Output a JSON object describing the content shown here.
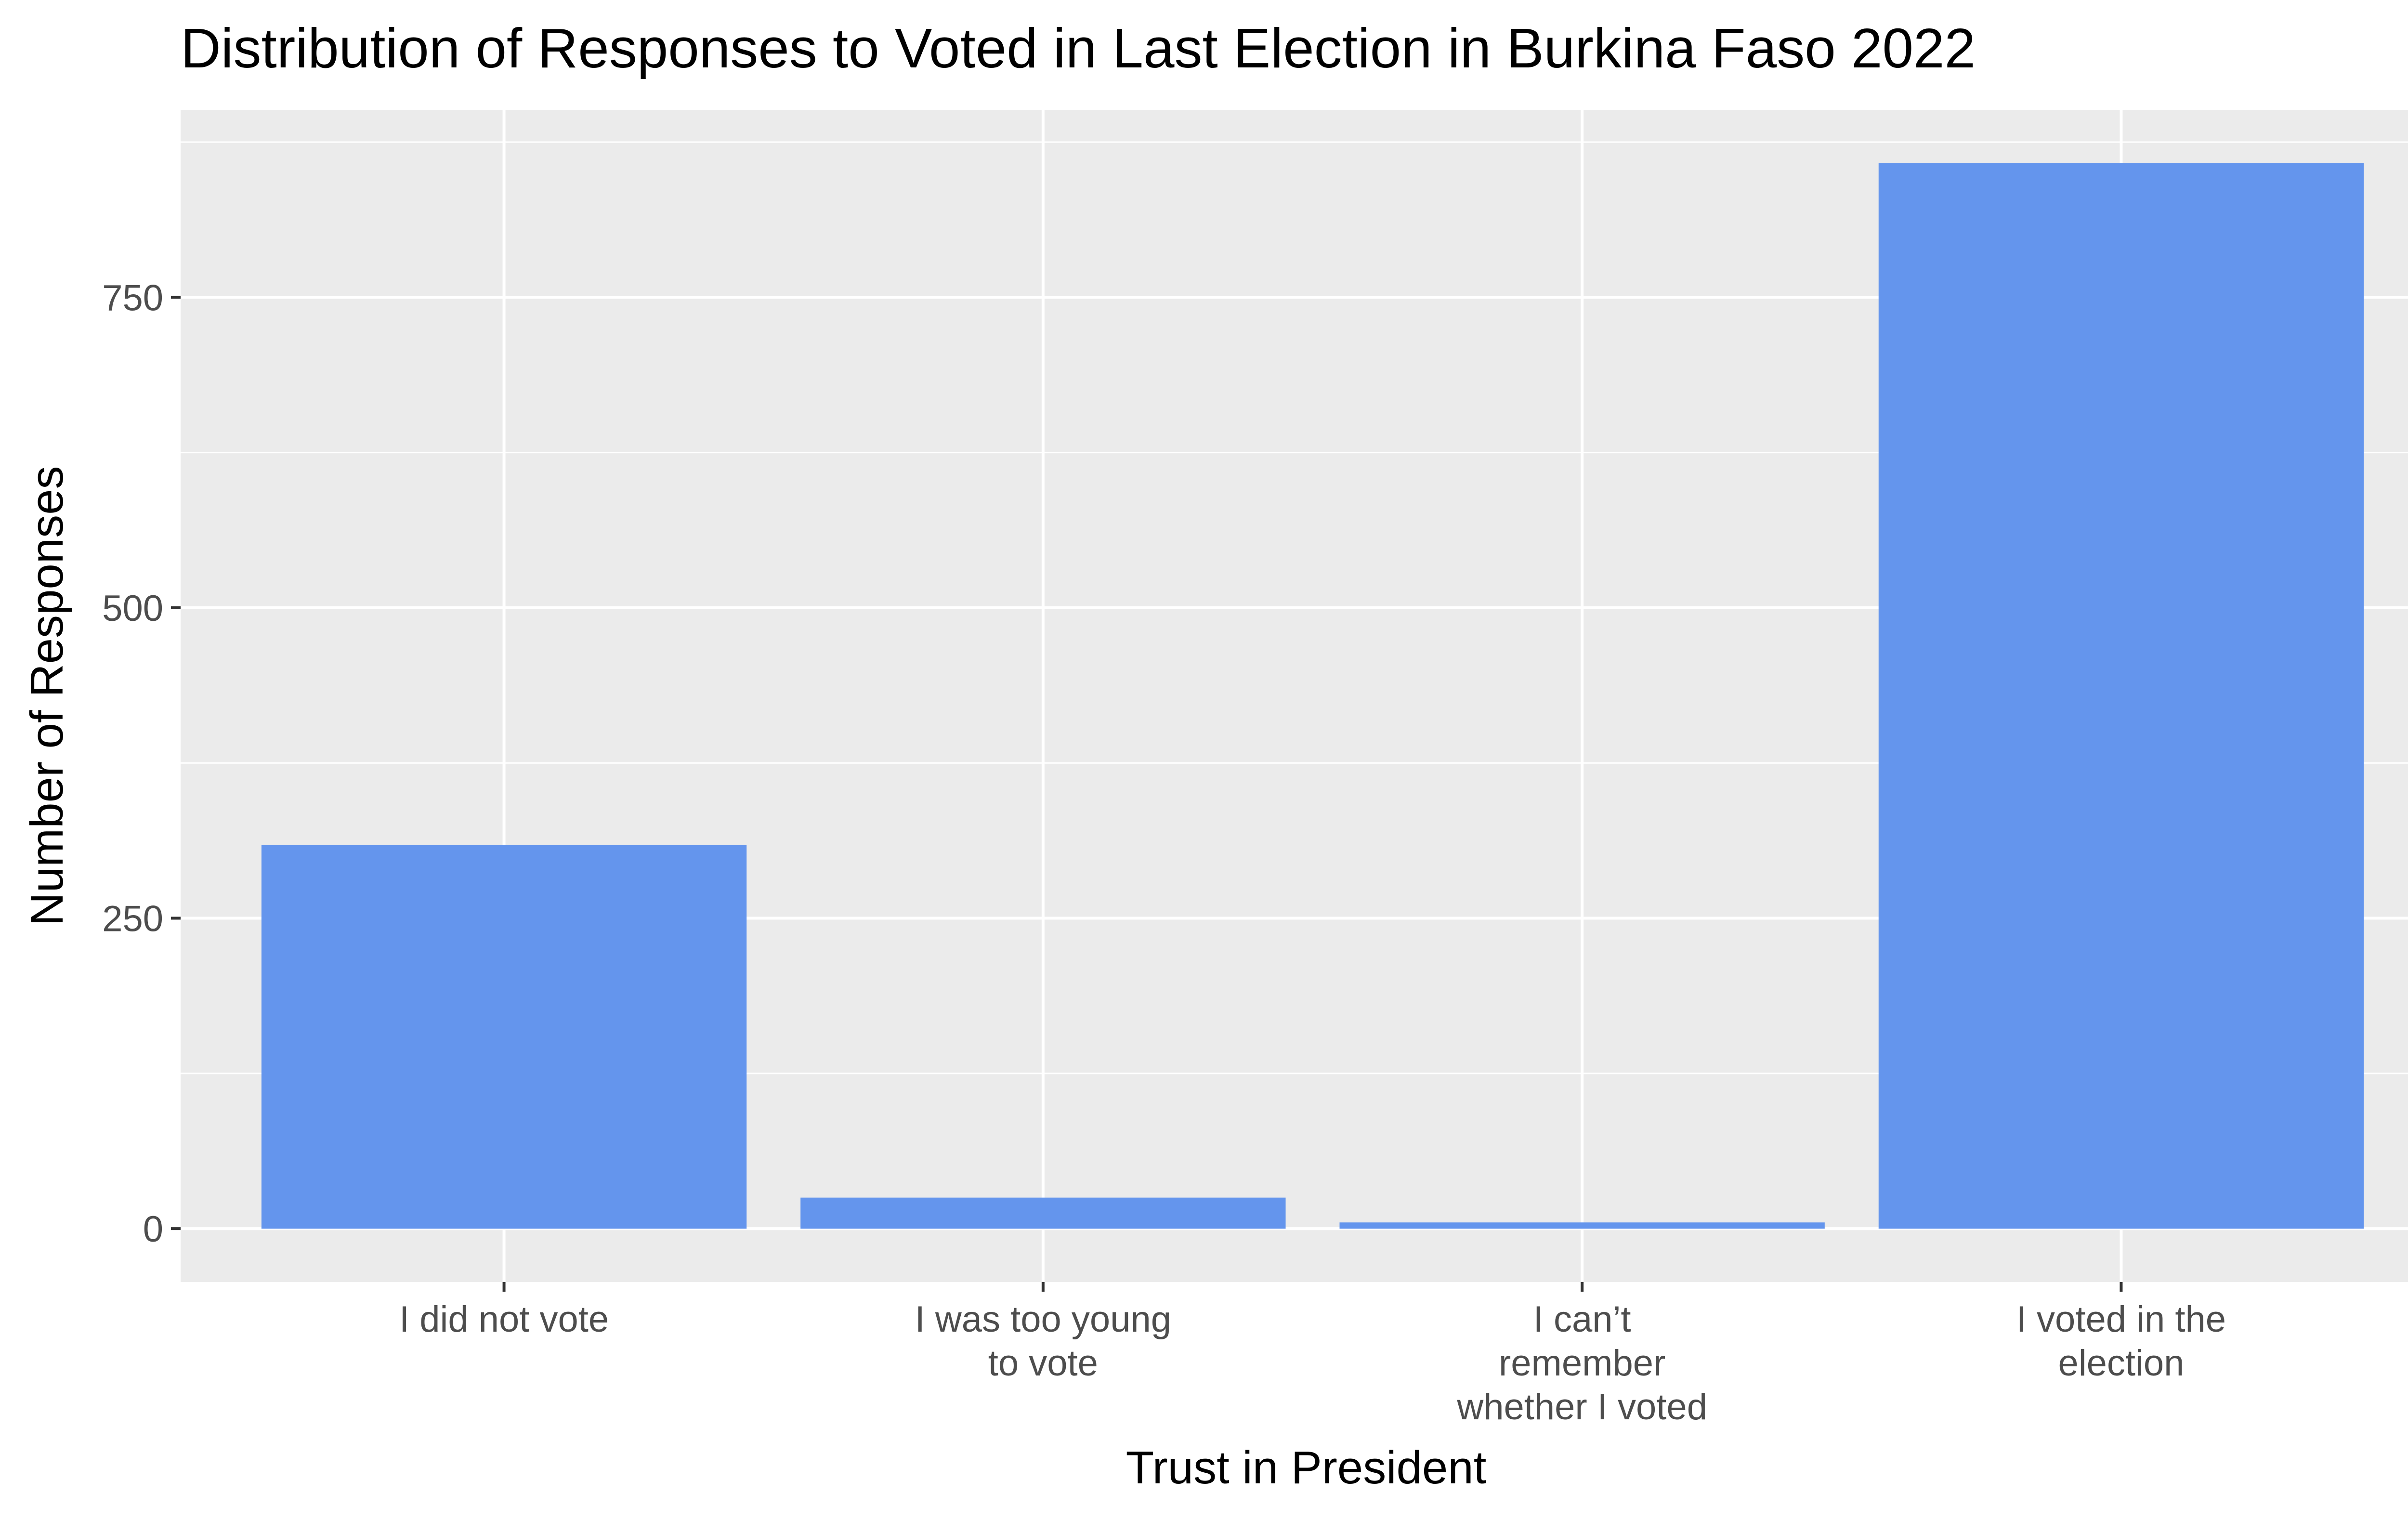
{
  "chart_data": {
    "type": "bar",
    "title": "Distribution of Responses to Voted in Last Election in Burkina Faso 2022",
    "xlabel": "Trust in President",
    "ylabel": "Number of Responses",
    "categories": [
      "I did not vote",
      "I was too young to vote",
      "I can’t remember whether I voted",
      "I voted in the election"
    ],
    "category_label_lines": [
      [
        "I did not vote"
      ],
      [
        "I was too young",
        "to vote"
      ],
      [
        "I can’t",
        "remember",
        "whether I voted"
      ],
      [
        "I voted in the",
        "election"
      ]
    ],
    "values": [
      309,
      25,
      5,
      858
    ],
    "ylim": [
      -43,
      901
    ],
    "yticks": [
      0,
      250,
      500,
      750
    ],
    "ytick_labels": [
      "0",
      "250",
      "500",
      "750"
    ],
    "grid": true,
    "legend": "none"
  },
  "colors": {
    "bar": "#6495ED",
    "panel": "#EBEBEB",
    "grid": "#FFFFFF",
    "tick": "#333333",
    "tick_label": "#4D4D4D"
  }
}
